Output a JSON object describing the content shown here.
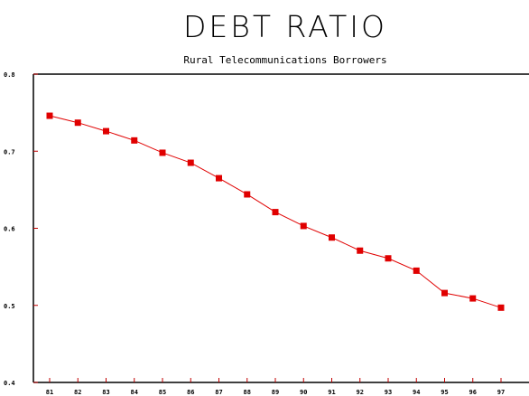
{
  "chart_data": {
    "type": "line",
    "title": "DEBT RATIO",
    "subtitle": "Rural Telecommunications Borrowers",
    "xlabel": "",
    "ylabel": "",
    "categories": [
      "81",
      "82",
      "83",
      "84",
      "85",
      "86",
      "87",
      "88",
      "89",
      "90",
      "91",
      "92",
      "93",
      "94",
      "95",
      "96",
      "97"
    ],
    "yticks": [
      "0.4",
      "0.5",
      "0.6",
      "0.7",
      "0.8"
    ],
    "ylim": [
      0.4,
      0.8
    ],
    "grid": false,
    "series": [
      {
        "values": [
          0.746,
          0.737,
          0.726,
          0.714,
          0.698,
          0.685,
          0.665,
          0.644,
          0.621,
          0.603,
          0.588,
          0.571,
          0.561,
          0.545,
          0.516,
          0.509,
          0.497
        ],
        "color": "#e00000"
      }
    ]
  }
}
